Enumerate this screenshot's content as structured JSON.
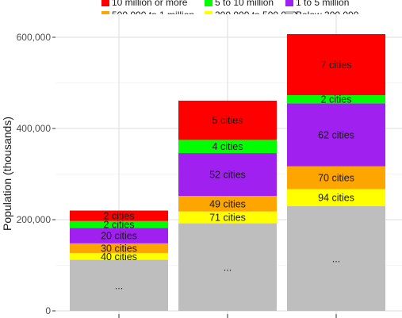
{
  "chart_data": {
    "type": "bar",
    "stacked": true,
    "ylabel": "Population (thousands)",
    "xlabel": "",
    "ylim": [
      0,
      620000
    ],
    "yticks": [
      0,
      200000,
      400000,
      600000
    ],
    "ytick_labels": [
      "0",
      "200,000",
      "400,000",
      "600,000"
    ],
    "grid": true,
    "legend_position": "top",
    "categories": [
      "",
      "",
      ""
    ],
    "series": [
      {
        "name": "Below 300,000",
        "color": "#bebebe",
        "values": [
          112000,
          192000,
          230000
        ],
        "labels": [
          "...",
          "...",
          "..."
        ]
      },
      {
        "name": "300,000 to 500,000",
        "color": "#ffff00",
        "values": [
          15000,
          26000,
          37000
        ],
        "labels": [
          "40 cities",
          "71 cities",
          "94 cities"
        ]
      },
      {
        "name": "500,000 to 1 million",
        "color": "#ffa500",
        "values": [
          21000,
          34000,
          50000
        ],
        "labels": [
          "30 cities",
          "49 cities",
          "70 cities"
        ]
      },
      {
        "name": "1 to 5 million",
        "color": "#a020f0",
        "values": [
          34000,
          94000,
          138000
        ],
        "labels": [
          "20 cities",
          "52 cities",
          "62 cities"
        ]
      },
      {
        "name": "5 to 10 million",
        "color": "#00ff00",
        "values": [
          15000,
          29000,
          18000
        ],
        "labels": [
          "2 cities",
          "4 cities",
          "2 cities"
        ]
      },
      {
        "name": "10 million or more",
        "color": "#ff0000",
        "values": [
          23000,
          86000,
          134000
        ],
        "labels": [
          "2 cities",
          "5 cities",
          "7 cities"
        ]
      }
    ]
  }
}
